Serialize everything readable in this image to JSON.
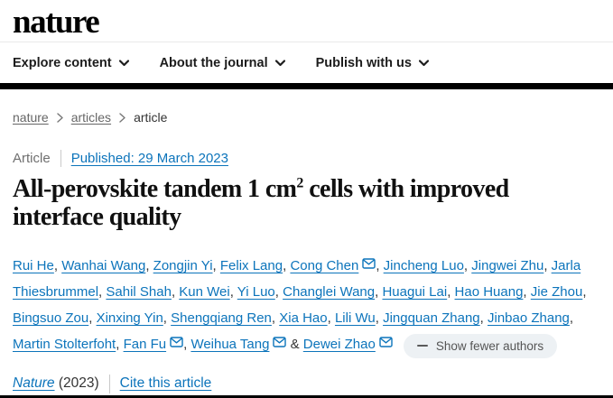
{
  "brand": {
    "logo": "nature"
  },
  "nav": {
    "items": [
      {
        "label": "Explore content"
      },
      {
        "label": "About the journal"
      },
      {
        "label": "Publish with us"
      }
    ]
  },
  "breadcrumb": {
    "items": [
      "nature",
      "articles",
      "article"
    ]
  },
  "article_meta": {
    "type_label": "Article",
    "published_link": "Published: 29 March 2023"
  },
  "title": {
    "line1_pre": "All-perovskite tandem 1 cm",
    "superscript": "2",
    "line1_post": " cells with improved",
    "line2": "interface quality"
  },
  "authors": {
    "list": [
      {
        "name": "Rui He"
      },
      {
        "name": "Wanhai Wang"
      },
      {
        "name": "Zongjin Yi"
      },
      {
        "name": "Felix Lang"
      },
      {
        "name": "Cong Chen",
        "email": true
      },
      {
        "name": "Jincheng Luo"
      },
      {
        "name": "Jingwei Zhu"
      },
      {
        "name": "Jarla Thiesbrummel"
      },
      {
        "name": "Sahil Shah"
      },
      {
        "name": "Kun Wei"
      },
      {
        "name": "Yi Luo"
      },
      {
        "name": "Changlei Wang"
      },
      {
        "name": "Huagui Lai"
      },
      {
        "name": "Hao Huang"
      },
      {
        "name": "Jie Zhou"
      },
      {
        "name": "Bingsuo Zou"
      },
      {
        "name": "Xinxing Yin"
      },
      {
        "name": "Shengqiang Ren"
      },
      {
        "name": "Xia Hao"
      },
      {
        "name": "Lili Wu"
      },
      {
        "name": "Jingquan Zhang"
      },
      {
        "name": "Jinbao Zhang"
      },
      {
        "name": "Martin Stolterfoht"
      },
      {
        "name": "Fan Fu",
        "email": true
      },
      {
        "name": "Weihua Tang",
        "email": true
      },
      {
        "name": "Dewei Zhao",
        "email": true
      }
    ],
    "and_separator": "&",
    "comma_separator": ", ",
    "show_fewer_label": "Show fewer authors"
  },
  "citation": {
    "journal": "Nature",
    "year": "(2023)",
    "cite_link": "Cite this article"
  },
  "colors": {
    "link_blue": "#0c74bb",
    "header_bar": "#000000",
    "pill_background": "#edf1f4",
    "muted_text": "#666666"
  }
}
